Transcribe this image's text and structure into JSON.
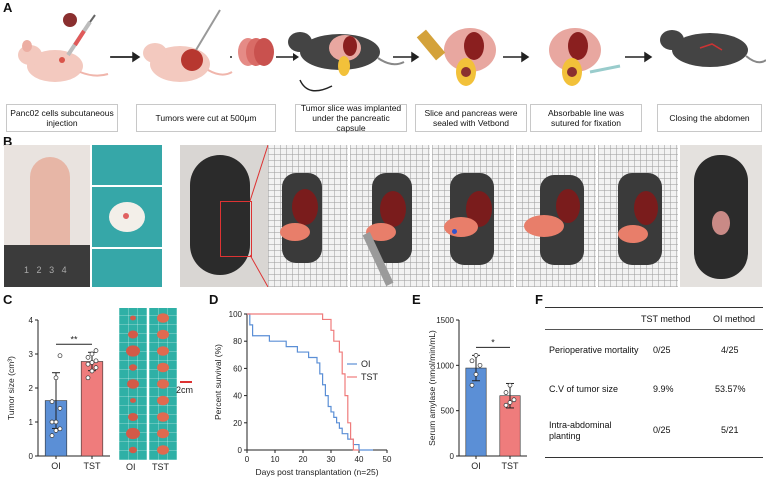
{
  "panels": {
    "A": "A",
    "B": "B",
    "C": "C",
    "D": "D",
    "E": "E",
    "F": "F"
  },
  "workflow_steps": [
    "Panc02 cells subcutaneous injection",
    "Tumors were cut at 500μm",
    "Tumor slice was implanted under the pancreatic capsule",
    "Slice and pancreas were sealed with Vetbond",
    "Absorbable line was sutured for fixation",
    "Closing the abdomen"
  ],
  "ruler_numbers": [
    "1",
    "2",
    "3",
    "4"
  ],
  "scale_bar_label": "2cm",
  "chart_data": [
    {
      "id": "C",
      "type": "bar",
      "categories": [
        "OI",
        "TST"
      ],
      "values": [
        1.63,
        2.78
      ],
      "errors": [
        0.82,
        0.27
      ],
      "points": [
        [
          0.6,
          0.75,
          0.8,
          1.0,
          1.0,
          1.4,
          1.6,
          2.3,
          2.95
        ],
        [
          2.3,
          2.5,
          2.6,
          2.7,
          2.75,
          2.8,
          2.9,
          3.0,
          3.1
        ]
      ],
      "colors": [
        "#5b8fd6",
        "#ef7c7c"
      ],
      "ylabel": "Tumor size (cm³)",
      "ylim": [
        0,
        4
      ],
      "yticks": [
        "0",
        "1",
        "2",
        "3",
        "4"
      ],
      "significance": "**"
    },
    {
      "id": "D",
      "type": "line",
      "title": "",
      "xlabel": "Days post transplantation (n=25)",
      "ylabel": "Percent survival (%)",
      "xlim": [
        0,
        50
      ],
      "ylim": [
        0,
        100
      ],
      "xticks": [
        "0",
        "10",
        "20",
        "30",
        "40",
        "50"
      ],
      "yticks": [
        "0",
        "20",
        "40",
        "60",
        "80",
        "100"
      ],
      "series": [
        {
          "name": "OI",
          "color": "#5b8fd6",
          "x": [
            0,
            1,
            1,
            2,
            2,
            8,
            8,
            14,
            14,
            18,
            18,
            22,
            22,
            25,
            25,
            26,
            26,
            27,
            27,
            28,
            28,
            29,
            29,
            30,
            30,
            31,
            31,
            32,
            32,
            33,
            33,
            34,
            34,
            36,
            36,
            38,
            38,
            40,
            40,
            45
          ],
          "y": [
            100,
            100,
            92,
            92,
            84,
            84,
            80,
            80,
            76,
            76,
            72,
            72,
            68,
            68,
            64,
            64,
            56,
            56,
            48,
            48,
            40,
            40,
            32,
            32,
            28,
            28,
            24,
            24,
            20,
            20,
            16,
            16,
            12,
            12,
            8,
            8,
            4,
            4,
            0,
            0
          ]
        },
        {
          "name": "TST",
          "color": "#ef7c7c",
          "x": [
            0,
            27,
            27,
            30,
            30,
            31,
            31,
            33,
            33,
            34,
            34,
            35,
            35,
            36,
            36,
            37,
            37,
            38,
            38,
            40
          ],
          "y": [
            100,
            100,
            96,
            96,
            88,
            88,
            80,
            80,
            72,
            72,
            56,
            56,
            40,
            40,
            20,
            20,
            8,
            8,
            0,
            0
          ]
        }
      ]
    },
    {
      "id": "E",
      "type": "bar",
      "categories": [
        "OI",
        "TST"
      ],
      "values": [
        970,
        665
      ],
      "errors": [
        140,
        135
      ],
      "points": [
        [
          780,
          900,
          1000,
          1050,
          1110
        ],
        [
          560,
          590,
          620,
          700,
          780
        ]
      ],
      "colors": [
        "#5b8fd6",
        "#ef7c7c"
      ],
      "ylabel": "Serum amylase (nmol/min/mL)",
      "ylim": [
        0,
        1500
      ],
      "yticks": [
        "0",
        "500",
        "1000",
        "1500"
      ],
      "significance": "*"
    }
  ],
  "table": {
    "headers": [
      "",
      "TST method",
      "OI method"
    ],
    "rows": [
      [
        "Perioperative mortality",
        "0/25",
        "4/25"
      ],
      [
        "C.V of tumor size",
        "9.9%",
        "53.57%"
      ],
      [
        "Intra-abdominal planting",
        "0/25",
        "5/21"
      ]
    ]
  },
  "colors": {
    "oi": "#5b8fd6",
    "tst": "#ef7c7c",
    "arrow": "#222222"
  }
}
